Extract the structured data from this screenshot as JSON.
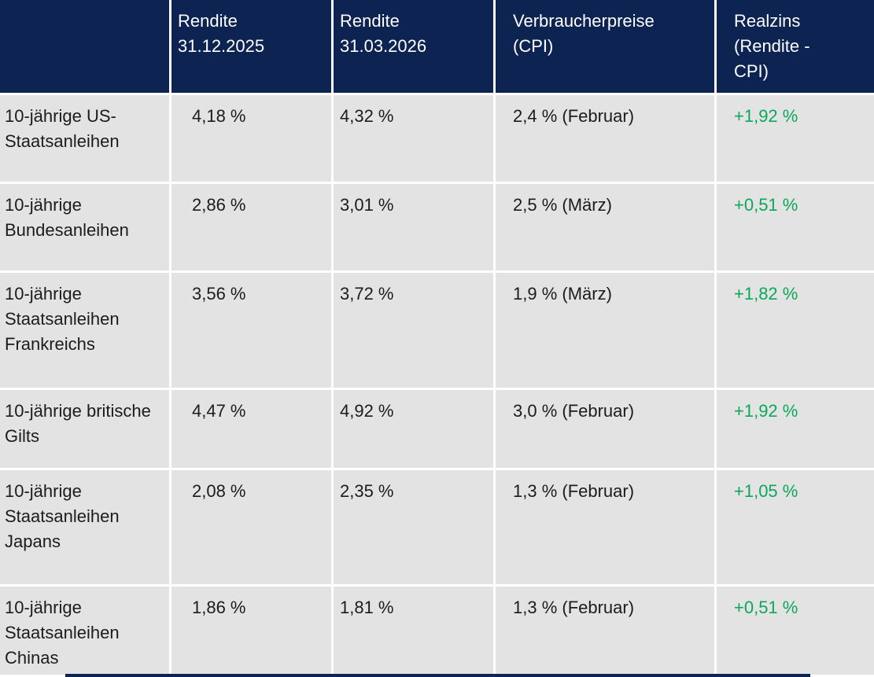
{
  "colors": {
    "header_bg": "#0d2352",
    "header_text": "#ffffff",
    "row_bg": "#e3e3e3",
    "gap": "#ffffff",
    "text": "#1c1c1c",
    "positive": "#0aa85a"
  },
  "header_lines": [
    [
      "Rendite",
      "31.12.2025"
    ],
    [
      "Rendite",
      "31.03.2026"
    ],
    [
      "Verbraucherpreise",
      "(CPI)"
    ],
    [
      "Realzins",
      "(Rendite -",
      "CPI)"
    ]
  ],
  "chart_data": {
    "type": "table",
    "title": "",
    "columns": [
      "",
      "Rendite 31.12.2025",
      "Rendite 31.03.2026",
      "Verbraucherpreise (CPI)",
      "Realzins (Rendite - CPI)"
    ],
    "rows": [
      [
        "10-jährige US-Staatsanleihen",
        "4,18 %",
        "4,32 %",
        "2,4 % (Februar)",
        "+1,92 %"
      ],
      [
        "10-jährige Bundesanleihen",
        "2,86 %",
        "3,01 %",
        "2,5 % (März)",
        "+0,51 %"
      ],
      [
        "10-jährige Staatsanleihen Frankreichs",
        "3,56 %",
        "3,72 %",
        "1,9 % (März)",
        "+1,82 %"
      ],
      [
        "10-jährige britische Gilts",
        "4,47 %",
        "4,92 %",
        "3,0 % (Februar)",
        "+1,92 %"
      ],
      [
        "10-jährige Staatsanleihen Japans",
        "2,08 %",
        "2,35 %",
        "1,3 % (Februar)",
        "+1,05 %"
      ],
      [
        "10-jährige Staatsanleihen Chinas",
        "1,86 %",
        "1,81 %",
        "1,3 % (Februar)",
        "+0,51 %"
      ]
    ],
    "notes": "Realzins column rendered in green with leading plus sign"
  }
}
